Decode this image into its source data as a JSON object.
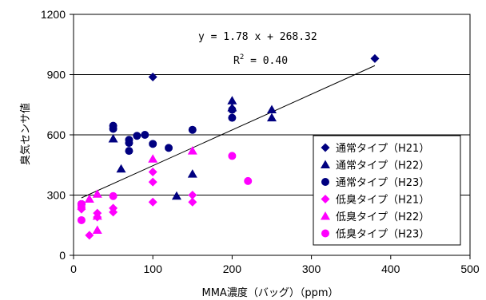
{
  "chart_data": {
    "type": "scatter",
    "xlabel": "MMA濃度（バッグ）（ppm）",
    "ylabel": "臭気センサ値",
    "xlim": [
      0,
      500
    ],
    "ylim": [
      0,
      1200
    ],
    "xticks": [
      0,
      100,
      200,
      300,
      400,
      500
    ],
    "yticks": [
      0,
      300,
      600,
      900,
      1200
    ],
    "grid": "horizontal",
    "legend_position": "right",
    "annotations": {
      "equation": "y = 1.78 x + 268.32",
      "r2_label": "R",
      "r2_sup": "2",
      "r2_value": " = 0.40"
    },
    "trendline": {
      "slope": 1.78,
      "intercept": 268.32,
      "x_range": [
        10,
        380
      ]
    },
    "series": [
      {
        "name": "通常タイプ（H21）",
        "marker": "diamond",
        "color": "#000080",
        "points": [
          [
            100,
            888
          ],
          [
            380,
            980
          ]
        ]
      },
      {
        "name": "通常タイプ（H22）",
        "marker": "triangle",
        "color": "#000080",
        "points": [
          [
            50,
            580
          ],
          [
            60,
            430
          ],
          [
            130,
            295
          ],
          [
            150,
            405
          ],
          [
            200,
            770
          ],
          [
            200,
            735
          ],
          [
            250,
            725
          ],
          [
            250,
            685
          ]
        ]
      },
      {
        "name": "通常タイプ（H23）",
        "marker": "circle",
        "color": "#000080",
        "points": [
          [
            10,
            255
          ],
          [
            50,
            645
          ],
          [
            50,
            630
          ],
          [
            70,
            575
          ],
          [
            70,
            560
          ],
          [
            70,
            520
          ],
          [
            80,
            595
          ],
          [
            90,
            600
          ],
          [
            100,
            555
          ],
          [
            120,
            535
          ],
          [
            150,
            625
          ],
          [
            200,
            725
          ],
          [
            200,
            685
          ]
        ]
      },
      {
        "name": "低臭タイプ（H21）",
        "marker": "diamond",
        "color": "#FF00FF",
        "points": [
          [
            10,
            230
          ],
          [
            20,
            100
          ],
          [
            30,
            210
          ],
          [
            30,
            190
          ],
          [
            50,
            235
          ],
          [
            50,
            215
          ],
          [
            100,
            415
          ],
          [
            100,
            365
          ],
          [
            100,
            265
          ],
          [
            150,
            300
          ],
          [
            150,
            265
          ]
        ]
      },
      {
        "name": "低臭タイプ（H22）",
        "marker": "triangle",
        "color": "#FF00FF",
        "points": [
          [
            20,
            280
          ],
          [
            30,
            305
          ],
          [
            30,
            125
          ],
          [
            30,
            195
          ],
          [
            100,
            480
          ],
          [
            150,
            520
          ]
        ]
      },
      {
        "name": "低臭タイプ（H23）",
        "marker": "circle",
        "color": "#FF00FF",
        "points": [
          [
            10,
            255
          ],
          [
            10,
            240
          ],
          [
            10,
            175
          ],
          [
            50,
            295
          ],
          [
            200,
            495
          ],
          [
            220,
            370
          ]
        ]
      }
    ]
  }
}
